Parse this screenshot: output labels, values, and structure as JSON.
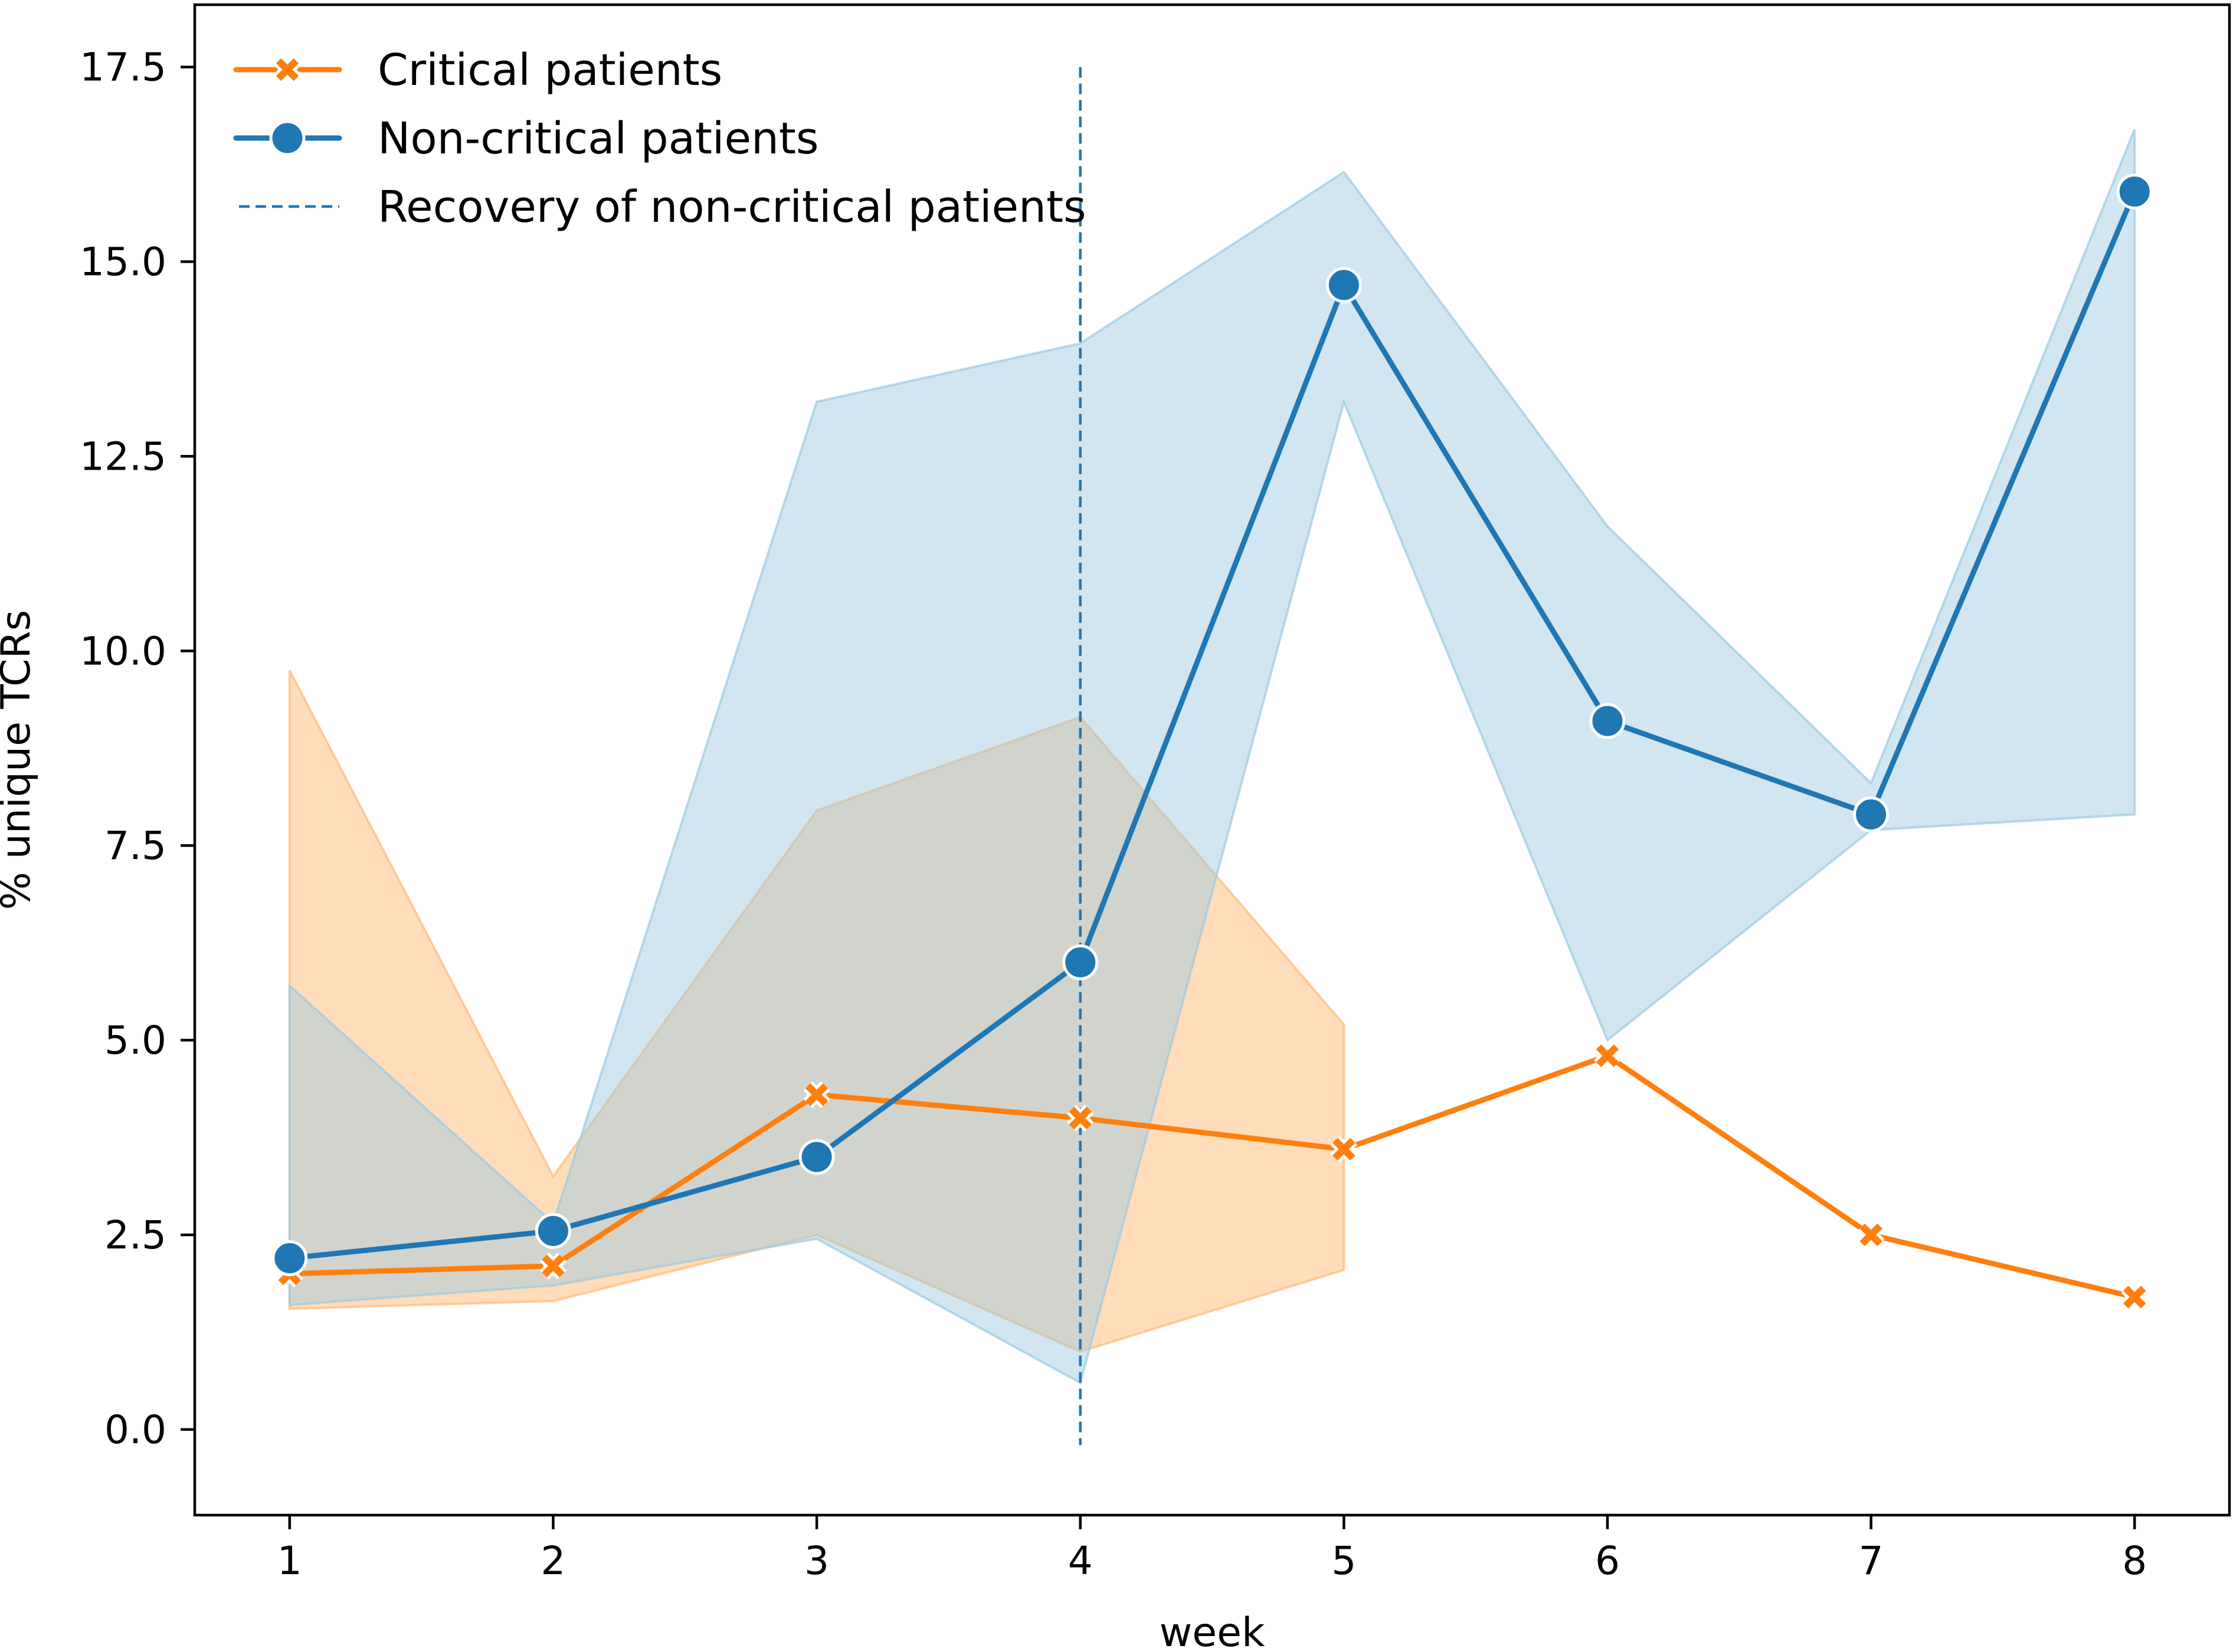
{
  "chart_data": {
    "type": "line",
    "title": "",
    "xlabel": "week",
    "ylabel": "% unique TCRs",
    "xlim": [
      0.64,
      8.36
    ],
    "ylim": [
      -1.1,
      18.3
    ],
    "xticks": [
      1,
      2,
      3,
      4,
      5,
      6,
      7,
      8
    ],
    "xtick_labels": [
      "1",
      "2",
      "3",
      "4",
      "5",
      "6",
      "7",
      "8"
    ],
    "yticks": [
      0.0,
      2.5,
      5.0,
      7.5,
      10.0,
      12.5,
      15.0,
      17.5
    ],
    "ytick_labels": [
      "0.0",
      "2.5",
      "5.0",
      "7.5",
      "10.0",
      "12.5",
      "15.0",
      "17.5"
    ],
    "grid": false,
    "legend_position": "top-left",
    "series": [
      {
        "name": "Critical patients",
        "color": "#ff7f0e",
        "band_color": "#ffbb78",
        "marker": "x",
        "x": [
          1,
          2,
          3,
          4,
          5,
          6,
          7,
          8
        ],
        "values": [
          2.0,
          2.1,
          4.3,
          4.0,
          3.6,
          4.8,
          2.5,
          1.7
        ],
        "ci_x": [
          1,
          2,
          3,
          4,
          5
        ],
        "ci_lower": [
          1.55,
          1.65,
          2.5,
          1.0,
          2.05
        ],
        "ci_upper": [
          9.75,
          3.25,
          7.95,
          9.15,
          5.2
        ]
      },
      {
        "name": "Non-critical patients",
        "color": "#1f77b4",
        "band_color": "#9ecae1",
        "marker": "o",
        "x": [
          1,
          2,
          3,
          4,
          5,
          6,
          7,
          8
        ],
        "values": [
          2.2,
          2.55,
          3.5,
          6.0,
          14.7,
          9.1,
          7.9,
          15.9
        ],
        "ci_x": [
          1,
          2,
          3,
          4,
          5,
          6,
          7,
          8
        ],
        "ci_lower": [
          1.6,
          1.85,
          2.45,
          0.6,
          13.2,
          5.0,
          7.7,
          7.9
        ],
        "ci_upper": [
          5.7,
          2.65,
          13.2,
          13.95,
          16.15,
          11.6,
          8.3,
          16.7
        ]
      }
    ],
    "reference_line": {
      "name": "Recovery of non-critical patients",
      "orientation": "vertical",
      "x": 4,
      "y_range": [
        -0.2,
        17.5
      ],
      "color": "#1f77b4",
      "style": "dashed"
    }
  }
}
